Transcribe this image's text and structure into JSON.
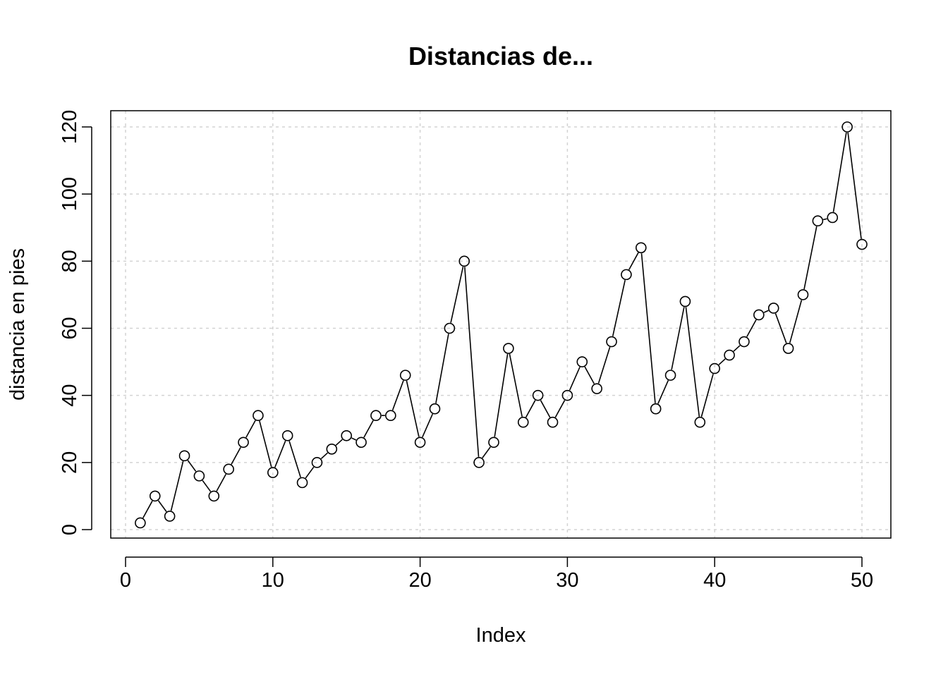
{
  "chart_data": {
    "type": "line",
    "markers": "open-circle",
    "title": "Distancias de...",
    "xlabel": "Index",
    "ylabel": "distancia en pies",
    "xlim": [
      0,
      50
    ],
    "ylim": [
      0,
      120
    ],
    "xticks": [
      0,
      10,
      20,
      30,
      40,
      50
    ],
    "yticks": [
      0,
      20,
      40,
      60,
      80,
      100,
      120
    ],
    "grid": true,
    "grid_style": "dotted",
    "grid_color": "#d3d3d3",
    "series_color": "#000000",
    "x": [
      1,
      2,
      3,
      4,
      5,
      6,
      7,
      8,
      9,
      10,
      11,
      12,
      13,
      14,
      15,
      16,
      17,
      18,
      19,
      20,
      21,
      22,
      23,
      24,
      25,
      26,
      27,
      28,
      29,
      30,
      31,
      32,
      33,
      34,
      35,
      36,
      37,
      38,
      39,
      40,
      41,
      42,
      43,
      44,
      45,
      46,
      47,
      48,
      49,
      50
    ],
    "values": [
      2,
      10,
      4,
      22,
      16,
      10,
      18,
      26,
      34,
      17,
      28,
      14,
      20,
      24,
      28,
      26,
      34,
      34,
      46,
      26,
      36,
      60,
      80,
      20,
      26,
      54,
      32,
      40,
      32,
      40,
      50,
      42,
      56,
      76,
      84,
      36,
      46,
      68,
      32,
      48,
      52,
      56,
      64,
      66,
      54,
      70,
      92,
      93,
      120,
      85
    ]
  }
}
